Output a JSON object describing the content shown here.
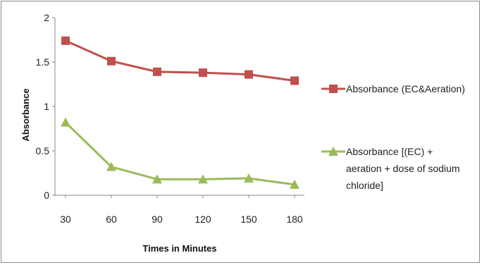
{
  "chart_data": {
    "type": "line",
    "title": "",
    "xlabel": "Times in Minutes",
    "ylabel": "Absorbance",
    "categories": [
      "30",
      "60",
      "90",
      "120",
      "150",
      "180"
    ],
    "ylim": [
      0,
      2
    ],
    "yticks": [
      "0",
      "0.5",
      "1",
      "1.5",
      "2"
    ],
    "grid": false,
    "legend_position": "right",
    "series": [
      {
        "name": "Absorbance (EC&Aeration)",
        "legend_lines": [
          "Absorbance (EC&Aeration)"
        ],
        "values": [
          1.74,
          1.51,
          1.39,
          1.38,
          1.36,
          1.29
        ],
        "color": "#c0504d",
        "marker": "square"
      },
      {
        "name": "Absorbance [(EC) + aeration + dose of sodium chloride]",
        "legend_lines": [
          "Absorbance [(EC) +",
          "aeration + dose of sodium",
          "chloride]"
        ],
        "values": [
          0.82,
          0.32,
          0.18,
          0.18,
          0.19,
          0.12
        ],
        "color": "#9bbb59",
        "marker": "triangle"
      }
    ]
  }
}
